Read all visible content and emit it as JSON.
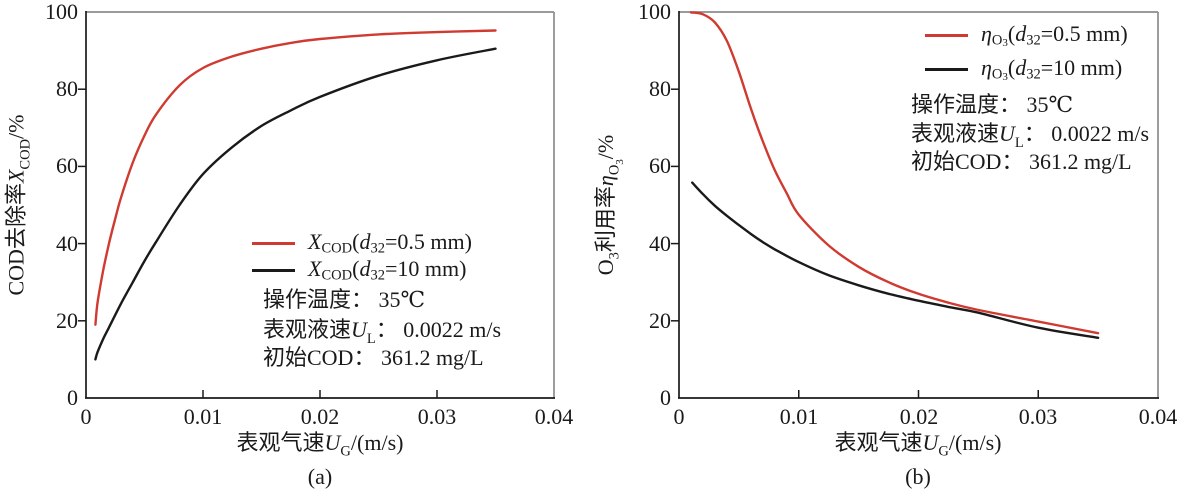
{
  "style": {
    "red": "#cf3a31",
    "black": "#1a1a1a",
    "frame_dark": "#1a1a1a",
    "frame_light": "#8c8c8c",
    "text": "#1a1a1a",
    "background": "#ffffff"
  },
  "charts": [
    {
      "caption": "(a)",
      "x_axis": {
        "ticks": [
          "0",
          "0.01",
          "0.02",
          "0.03",
          "0.04"
        ],
        "label_segments": [
          {
            "t": "表观气速",
            "s": "n"
          },
          {
            "t": "U",
            "s": "i"
          },
          {
            "t": "G",
            "s": "sub"
          },
          {
            "t": "/(m/s)",
            "s": "n"
          }
        ]
      },
      "y_axis": {
        "ticks": [
          "100",
          "80",
          "60",
          "40",
          "20",
          "0"
        ],
        "label_segments": [
          {
            "t": "COD去除率",
            "s": "n"
          },
          {
            "t": "X",
            "s": "i"
          },
          {
            "t": "COD",
            "s": "sub"
          },
          {
            "t": "/%",
            "s": "n"
          }
        ]
      },
      "legend": [
        {
          "color": "#cf3a31",
          "segments": [
            {
              "t": "X",
              "s": "i"
            },
            {
              "t": "COD",
              "s": "sub"
            },
            {
              "t": "(",
              "s": "n"
            },
            {
              "t": "d",
              "s": "i"
            },
            {
              "t": "32",
              "s": "sub"
            },
            {
              "t": "=0.5 mm)",
              "s": "n"
            }
          ]
        },
        {
          "color": "#1a1a1a",
          "segments": [
            {
              "t": "X",
              "s": "i"
            },
            {
              "t": "COD",
              "s": "sub"
            },
            {
              "t": "(",
              "s": "n"
            },
            {
              "t": "d",
              "s": "i"
            },
            {
              "t": "32",
              "s": "sub"
            },
            {
              "t": "=10 mm)",
              "s": "n"
            }
          ]
        }
      ],
      "annotations": [
        [
          {
            "t": "操作温度： 35℃",
            "s": "n"
          }
        ],
        [
          {
            "t": "表观液速",
            "s": "n"
          },
          {
            "t": "U",
            "s": "i"
          },
          {
            "t": "L",
            "s": "sub"
          },
          {
            "t": "： 0.0022 m/s",
            "s": "n"
          }
        ],
        [
          {
            "t": "初始COD： 361.2 mg/L",
            "s": "n"
          }
        ]
      ]
    },
    {
      "caption": "(b)",
      "x_axis": {
        "ticks": [
          "0",
          "0.01",
          "0.02",
          "0.03",
          "0.04"
        ],
        "label_segments": [
          {
            "t": "表观气速",
            "s": "n"
          },
          {
            "t": "U",
            "s": "i"
          },
          {
            "t": "G",
            "s": "sub"
          },
          {
            "t": "/(m/s)",
            "s": "n"
          }
        ]
      },
      "y_axis": {
        "ticks": [
          "100",
          "80",
          "60",
          "40",
          "20",
          "0"
        ],
        "label_segments": [
          {
            "t": "O",
            "s": "n"
          },
          {
            "t": "3",
            "s": "sub"
          },
          {
            "t": "利用率",
            "s": "n"
          },
          {
            "t": "η",
            "s": "i"
          },
          {
            "t": "O",
            "s": "sub"
          },
          {
            "t": "3",
            "s": "subsub"
          },
          {
            "t": "/%",
            "s": "n"
          }
        ]
      },
      "legend": [
        {
          "color": "#cf3a31",
          "segments": [
            {
              "t": "η",
              "s": "i"
            },
            {
              "t": "O",
              "s": "sub"
            },
            {
              "t": "3",
              "s": "subsub"
            },
            {
              "t": "(",
              "s": "n"
            },
            {
              "t": "d",
              "s": "i"
            },
            {
              "t": "32",
              "s": "sub"
            },
            {
              "t": "=0.5 mm)",
              "s": "n"
            }
          ]
        },
        {
          "color": "#1a1a1a",
          "segments": [
            {
              "t": "η",
              "s": "i"
            },
            {
              "t": "O",
              "s": "sub"
            },
            {
              "t": "3",
              "s": "subsub"
            },
            {
              "t": "(",
              "s": "n"
            },
            {
              "t": "d",
              "s": "i"
            },
            {
              "t": "32",
              "s": "sub"
            },
            {
              "t": "=10 mm)",
              "s": "n"
            }
          ]
        }
      ],
      "annotations": [
        [
          {
            "t": "操作温度： 35℃",
            "s": "n"
          }
        ],
        [
          {
            "t": "表观液速",
            "s": "n"
          },
          {
            "t": "U",
            "s": "i"
          },
          {
            "t": "L",
            "s": "sub"
          },
          {
            "t": "： 0.0022 m/s",
            "s": "n"
          }
        ],
        [
          {
            "t": "初始COD： 361.2 mg/L",
            "s": "n"
          }
        ]
      ]
    }
  ],
  "chart_data": [
    {
      "type": "line",
      "title": "(a)",
      "xlabel": "表观气速 U_G /(m/s)",
      "ylabel": "COD去除率 X_COD /%",
      "xlim": [
        0,
        0.04
      ],
      "ylim": [
        0,
        100
      ],
      "xticks": [
        0,
        0.01,
        0.02,
        0.03,
        0.04
      ],
      "yticks": [
        0,
        20,
        40,
        60,
        80,
        100
      ],
      "grid": false,
      "legend_position": "inside lower-right",
      "annotations_text": [
        "操作温度： 35℃",
        "表观液速 U_L： 0.0022 m/s",
        "初始COD： 361.2 mg/L"
      ],
      "series": [
        {
          "name": "X_COD(d32=0.5 mm)",
          "color": "#cf3a31",
          "x": [
            0.0008,
            0.001,
            0.0015,
            0.002,
            0.0025,
            0.003,
            0.004,
            0.005,
            0.006,
            0.008,
            0.01,
            0.0125,
            0.015,
            0.0175,
            0.02,
            0.025,
            0.03,
            0.035
          ],
          "y": [
            19,
            25,
            33.5,
            40.5,
            46.5,
            52,
            61,
            68,
            73.5,
            81,
            85.5,
            88.5,
            90.5,
            92,
            93,
            94.2,
            94.8,
            95.2
          ]
        },
        {
          "name": "X_COD(d32=10 mm)",
          "color": "#1a1a1a",
          "x": [
            0.0008,
            0.001,
            0.0015,
            0.002,
            0.003,
            0.004,
            0.005,
            0.006,
            0.008,
            0.01,
            0.0125,
            0.015,
            0.0175,
            0.02,
            0.025,
            0.03,
            0.035
          ],
          "y": [
            10,
            12,
            15.5,
            18.5,
            24.5,
            30,
            35.5,
            40.5,
            50,
            58,
            65,
            70.5,
            74.5,
            78,
            83.5,
            87.5,
            90.5
          ]
        }
      ]
    },
    {
      "type": "line",
      "title": "(b)",
      "xlabel": "表观气速 U_G /(m/s)",
      "ylabel": "O3利用率 η_O3 /%",
      "xlim": [
        0,
        0.04
      ],
      "ylim": [
        0,
        100
      ],
      "xticks": [
        0,
        0.01,
        0.02,
        0.03,
        0.04
      ],
      "yticks": [
        0,
        20,
        40,
        60,
        80,
        100
      ],
      "grid": false,
      "legend_position": "inside upper-right",
      "annotations_text": [
        "操作温度： 35℃",
        "表观液速 U_L： 0.0022 m/s",
        "初始COD： 361.2 mg/L"
      ],
      "series": [
        {
          "name": "η_O3(d32=0.5 mm)",
          "color": "#cf3a31",
          "x": [
            0.001,
            0.002,
            0.003,
            0.004,
            0.005,
            0.006,
            0.007,
            0.008,
            0.009,
            0.01,
            0.0125,
            0.015,
            0.0175,
            0.02,
            0.0225,
            0.025,
            0.03,
            0.035
          ],
          "y": [
            99.9,
            99.4,
            97.3,
            92.5,
            84.5,
            75,
            66.5,
            59,
            53,
            47.5,
            39.5,
            34,
            30,
            27,
            24.7,
            22.8,
            19.8,
            16.8
          ]
        },
        {
          "name": "η_O3(d32=10 mm)",
          "color": "#1a1a1a",
          "x": [
            0.0011,
            0.002,
            0.003,
            0.004,
            0.005,
            0.006,
            0.007,
            0.008,
            0.01,
            0.0125,
            0.015,
            0.0175,
            0.02,
            0.0225,
            0.025,
            0.03,
            0.035
          ],
          "y": [
            55.8,
            52.8,
            49.8,
            47.2,
            44.8,
            42.5,
            40.4,
            38.5,
            35.2,
            31.8,
            29.2,
            27,
            25.2,
            23.6,
            22.1,
            18.2,
            15.6
          ]
        }
      ]
    }
  ]
}
